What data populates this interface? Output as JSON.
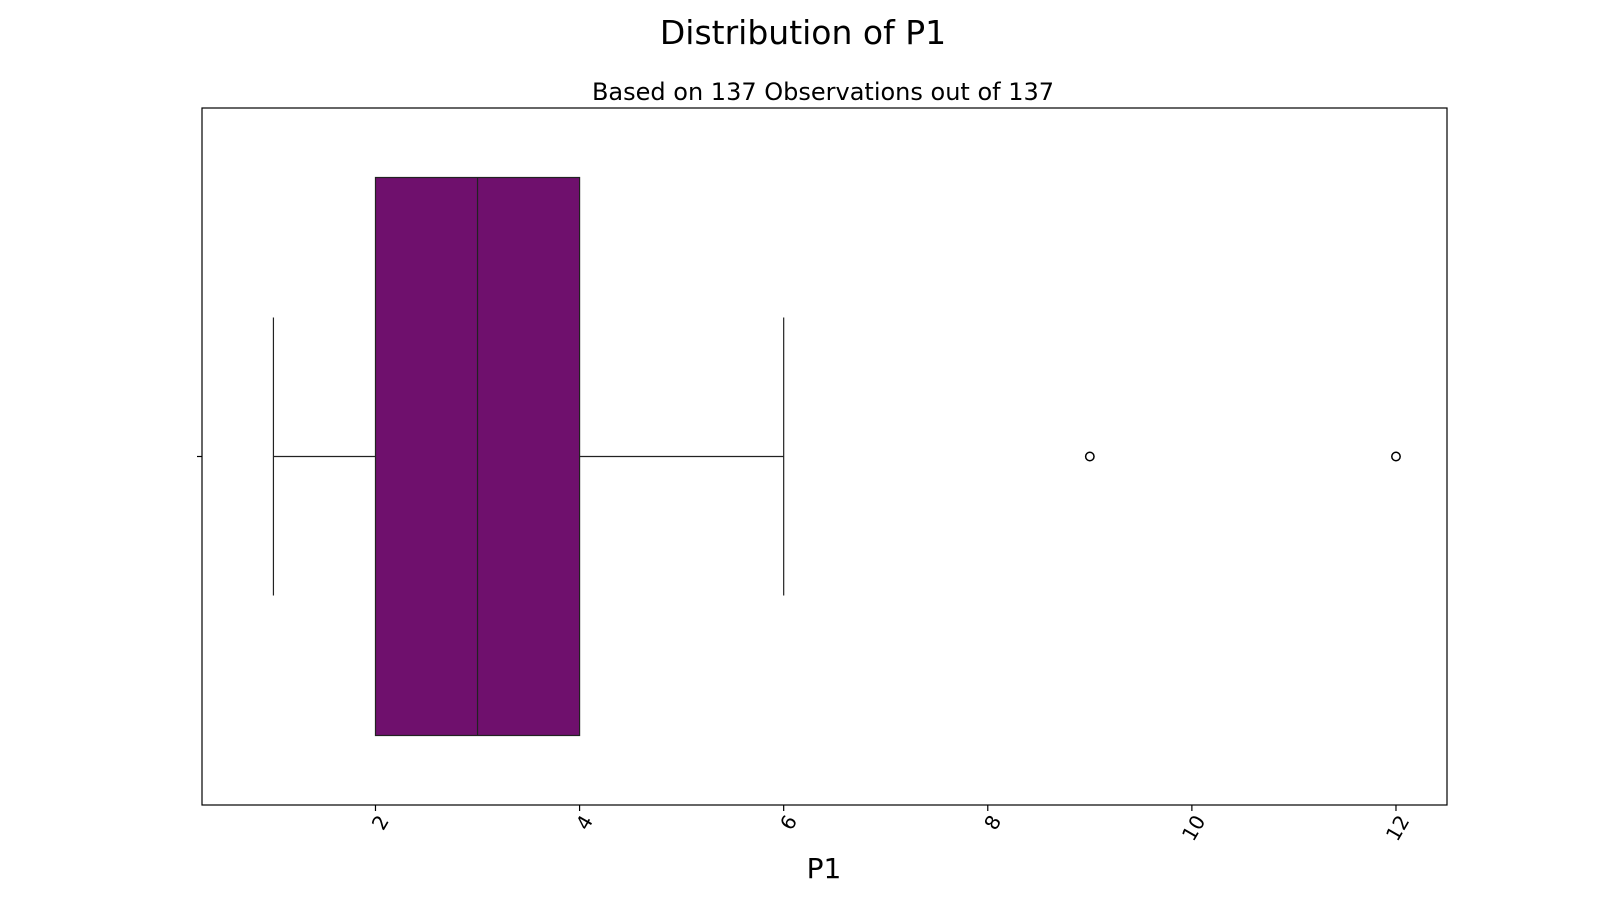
{
  "chart_data": {
    "type": "boxplot",
    "orientation": "horizontal",
    "title": "Distribution of P1",
    "subtitle": "Based on 137 Observations out of 137",
    "xlabel": "P1",
    "ylabel": "",
    "xlim": [
      0.3,
      12.5
    ],
    "x_ticks": [
      2,
      4,
      6,
      8,
      10,
      12
    ],
    "x_tick_labels": [
      "2",
      "4",
      "6",
      "8",
      "10",
      "12"
    ],
    "tick_label_rotation_deg": -60,
    "grid": false,
    "box": {
      "whisker_low": 1,
      "q1": 2,
      "median": 3,
      "q3": 4,
      "whisker_high": 6
    },
    "outliers": [
      9,
      12
    ],
    "colors": {
      "box_fill": "#6f106d",
      "lines": "#222222",
      "frame": "#000000"
    }
  }
}
